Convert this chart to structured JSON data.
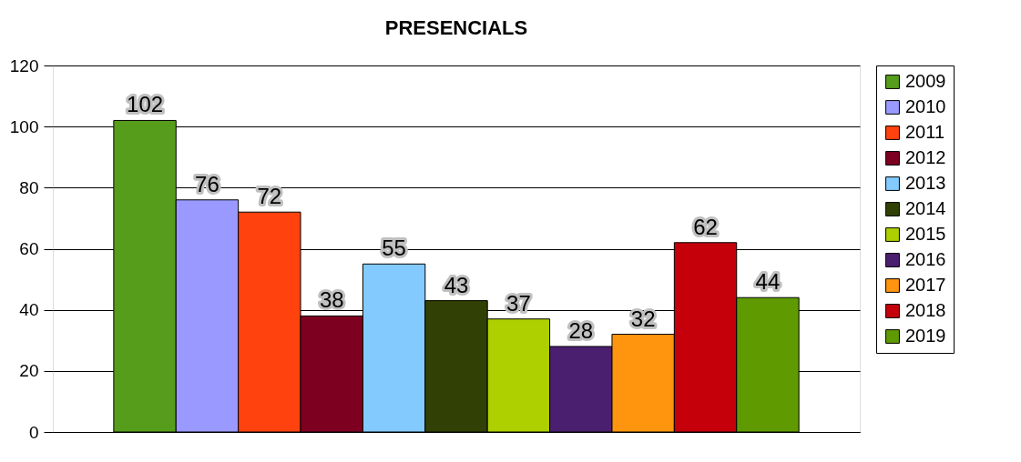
{
  "chart_data": {
    "type": "bar",
    "title": "PRESENCIALS",
    "categories": [
      null
    ],
    "series": [
      {
        "name": "2009",
        "color": "#579d1c",
        "values": [
          102
        ]
      },
      {
        "name": "2010",
        "color": "#9999ff",
        "values": [
          76
        ]
      },
      {
        "name": "2011",
        "color": "#ff420e",
        "values": [
          72
        ]
      },
      {
        "name": "2012",
        "color": "#7e0021",
        "values": [
          38
        ]
      },
      {
        "name": "2013",
        "color": "#83caff",
        "values": [
          55
        ]
      },
      {
        "name": "2014",
        "color": "#314004",
        "values": [
          43
        ]
      },
      {
        "name": "2015",
        "color": "#aecf00",
        "values": [
          37
        ]
      },
      {
        "name": "2016",
        "color": "#4b1f6f",
        "values": [
          28
        ]
      },
      {
        "name": "2017",
        "color": "#ff950e",
        "values": [
          32
        ]
      },
      {
        "name": "2018",
        "color": "#c5000b",
        "values": [
          62
        ]
      },
      {
        "name": "2019",
        "color": "#5f9a00",
        "values": [
          44
        ]
      }
    ],
    "ylim": [
      0,
      120
    ],
    "yticks": [
      0,
      20,
      40,
      60,
      80,
      100,
      120
    ],
    "grid": "y",
    "legend": "right",
    "data_labels": true,
    "tick_labels": "y"
  }
}
